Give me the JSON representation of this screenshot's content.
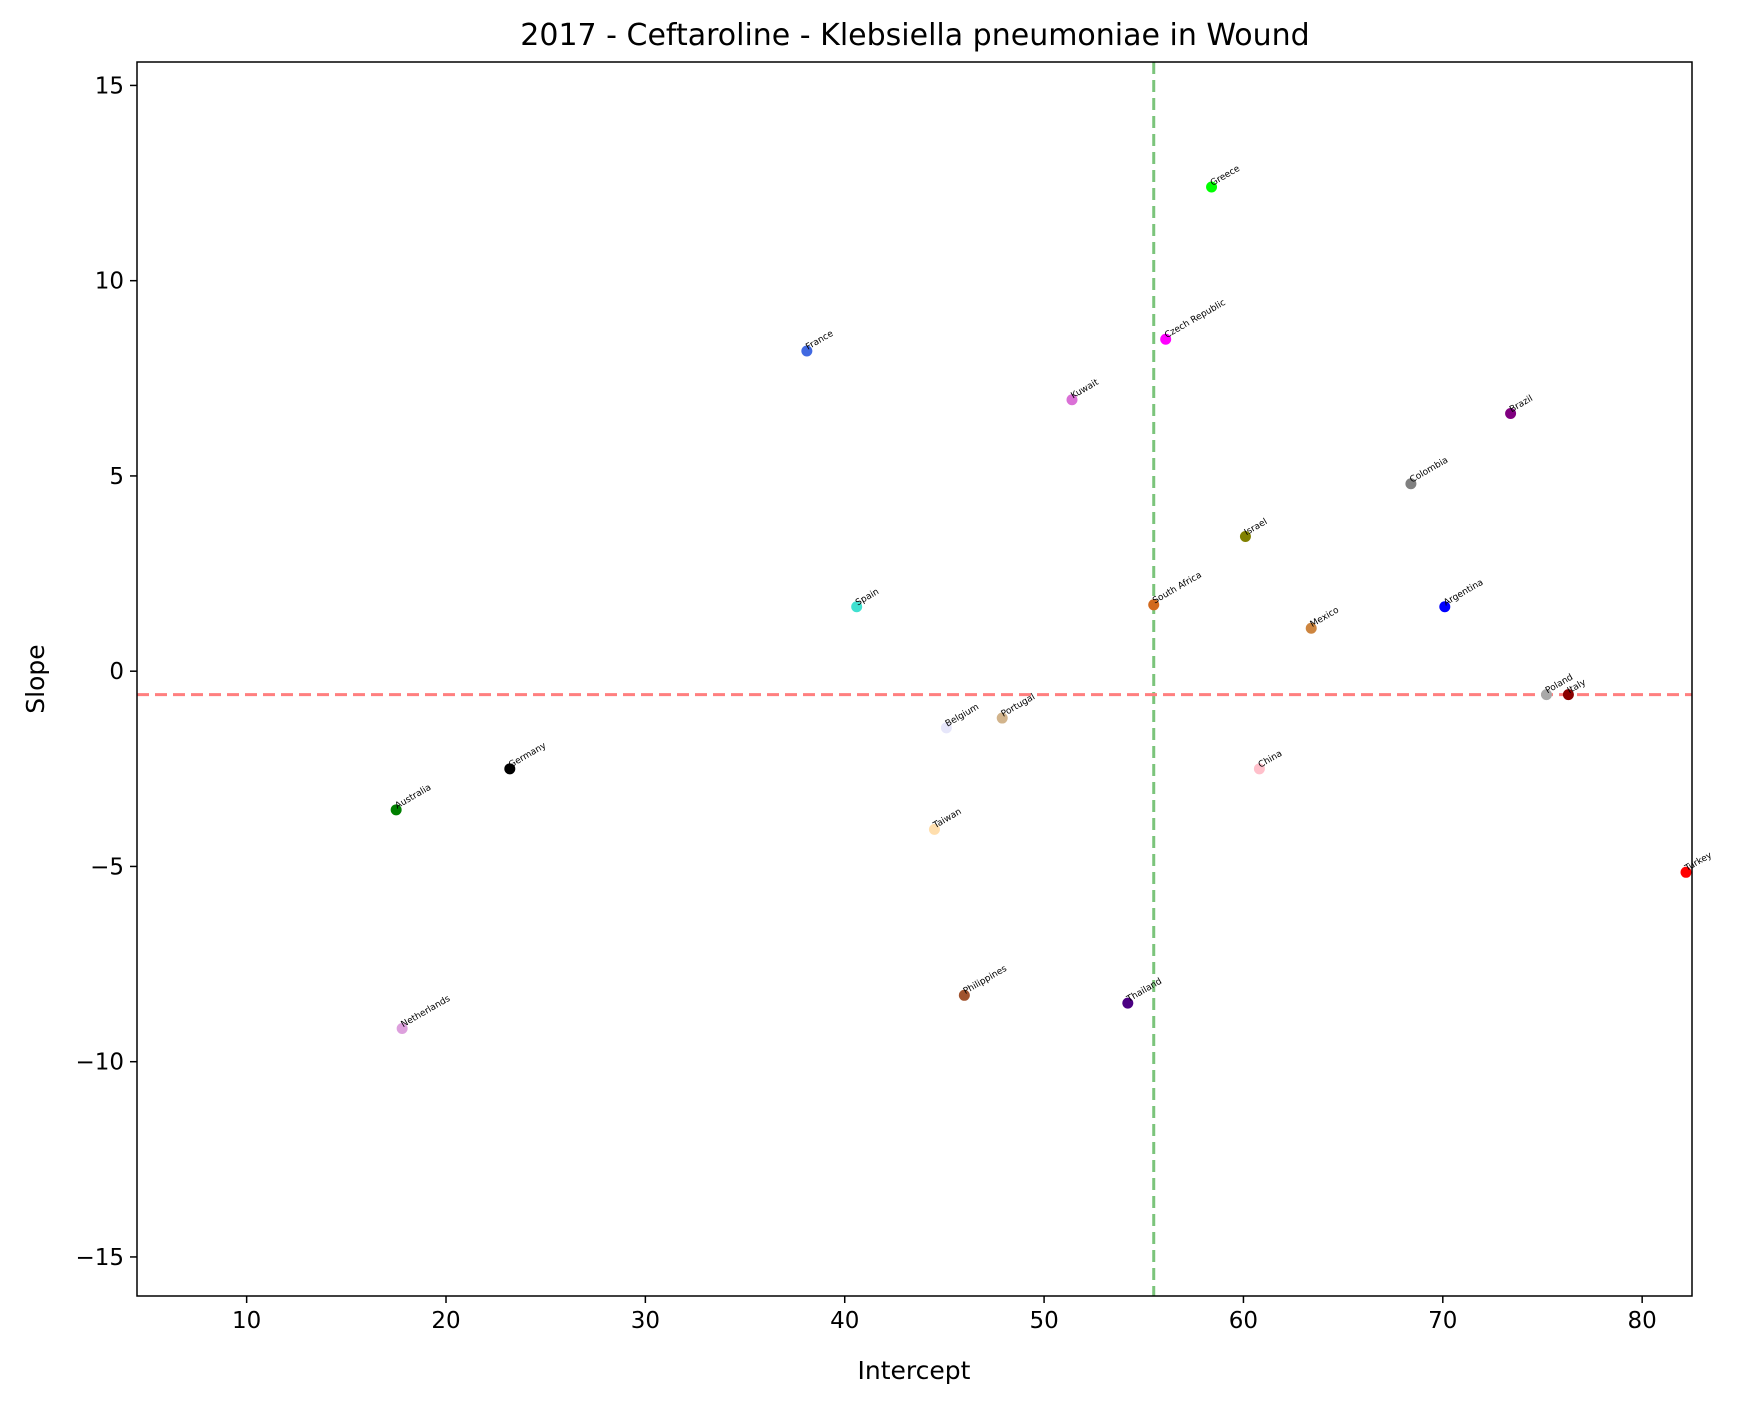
{
  "chart_data": {
    "type": "scatter",
    "title": "2017 - Ceftaroline - Klebsiella pneumoniae in Wound",
    "xlabel": "Intercept",
    "ylabel": "Slope",
    "xlim": [
      4.5,
      82.5
    ],
    "ylim": [
      -16,
      15.6
    ],
    "xticks": [
      10,
      20,
      30,
      40,
      50,
      60,
      70,
      80
    ],
    "yticks": [
      -15,
      -10,
      -5,
      0,
      5,
      10,
      15
    ],
    "ytick_labels": [
      "−15",
      "−10",
      "−5",
      "0",
      "5",
      "10",
      "15"
    ],
    "grid": false,
    "reference_lines": {
      "vertical_x": 55.5,
      "vertical_color": "#7bc47b",
      "horizontal_y": -0.6,
      "horizontal_color": "#ff7f7f"
    },
    "points": [
      {
        "label": "Greece",
        "x": 58.4,
        "y": 12.4,
        "color": "#00ff00"
      },
      {
        "label": "Czech Republic",
        "x": 56.1,
        "y": 8.5,
        "color": "#ff00ff"
      },
      {
        "label": "France",
        "x": 38.1,
        "y": 8.2,
        "color": "#4169e1"
      },
      {
        "label": "Kuwait",
        "x": 51.4,
        "y": 6.95,
        "color": "#da70d6"
      },
      {
        "label": "Brazil",
        "x": 73.4,
        "y": 6.6,
        "color": "#800080"
      },
      {
        "label": "Colombia",
        "x": 68.4,
        "y": 4.8,
        "color": "#808080"
      },
      {
        "label": "Israel",
        "x": 60.1,
        "y": 3.45,
        "color": "#808000"
      },
      {
        "label": "South Africa",
        "x": 55.5,
        "y": 1.7,
        "color": "#d2691e"
      },
      {
        "label": "Spain",
        "x": 40.6,
        "y": 1.65,
        "color": "#40e0d0"
      },
      {
        "label": "Argentina",
        "x": 70.1,
        "y": 1.65,
        "color": "#0000ff"
      },
      {
        "label": "Mexico",
        "x": 63.4,
        "y": 1.1,
        "color": "#cd853f"
      },
      {
        "label": "Poland",
        "x": 75.2,
        "y": -0.6,
        "color": "#a9a9a9"
      },
      {
        "label": "Italy",
        "x": 76.3,
        "y": -0.6,
        "color": "#8b0000"
      },
      {
        "label": "Portugal",
        "x": 47.9,
        "y": -1.2,
        "color": "#d2b48c"
      },
      {
        "label": "Belgium",
        "x": 45.1,
        "y": -1.45,
        "color": "#e6e6fa"
      },
      {
        "label": "Germany",
        "x": 23.2,
        "y": -2.5,
        "color": "#000000"
      },
      {
        "label": "China",
        "x": 60.8,
        "y": -2.5,
        "color": "#ffc0cb"
      },
      {
        "label": "Australia",
        "x": 17.5,
        "y": -3.55,
        "color": "#008000"
      },
      {
        "label": "Taiwan",
        "x": 44.5,
        "y": -4.05,
        "color": "#ffdead"
      },
      {
        "label": "Turkey",
        "x": 82.2,
        "y": -5.15,
        "color": "#ff0000"
      },
      {
        "label": "Philippines",
        "x": 46.0,
        "y": -8.3,
        "color": "#a0522d"
      },
      {
        "label": "Thailand",
        "x": 54.2,
        "y": -8.5,
        "color": "#4b0082"
      },
      {
        "label": "Netherlands",
        "x": 17.8,
        "y": -9.15,
        "color": "#dda0dd"
      }
    ]
  }
}
